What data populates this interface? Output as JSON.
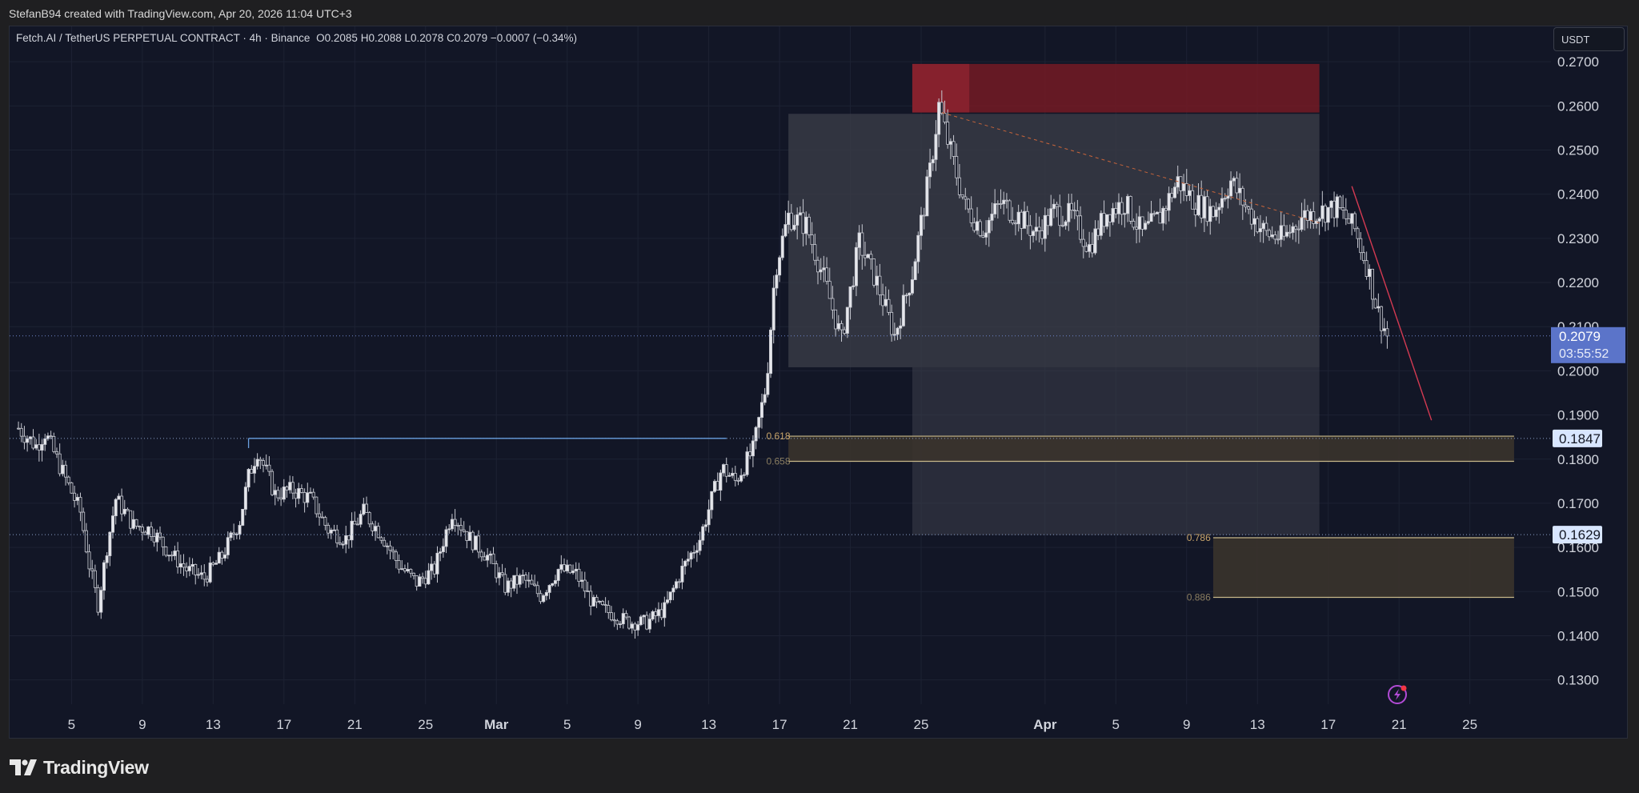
{
  "header": {
    "attribution": "StefanB94 created with TradingView.com, Apr 20, 2026 11:04 UTC+3"
  },
  "legend": {
    "symbol": "Fetch.AI / TetherUS PERPETUAL CONTRACT · 4h · Binance",
    "open": "O0.2085",
    "high": "H0.2088",
    "low": "L0.2078",
    "close": "C0.2079",
    "change": "−0.0007 (−0.34%)"
  },
  "currency_button": "USDT",
  "footer": {
    "brand": "TradingView"
  },
  "colors": {
    "background": "#121626",
    "candle": "#c7c9d1",
    "stop_zone": "#7a1a24",
    "range_box": "#3c3f4a",
    "fib_zone": "#3a332c",
    "fib_line": "#c8b88a",
    "trend_line": "#d43a52",
    "price_label": "#5b74c9",
    "level_label": "#d8e6ff"
  },
  "chart_data": {
    "type": "candlestick",
    "timeframe": "4h",
    "y_ticks": [
      0.13,
      0.14,
      0.15,
      0.16,
      0.17,
      0.18,
      0.19,
      0.2,
      0.21,
      0.22,
      0.23,
      0.24,
      0.25,
      0.26,
      0.27
    ],
    "y_tick_labels": [
      "0.1300",
      "0.1400",
      "0.1500",
      "0.1600",
      "0.1700",
      "0.1800",
      "0.1900",
      "0.2000",
      "0.2100",
      "0.2200",
      "0.2300",
      "0.2400",
      "0.2500",
      "0.2600",
      "0.2700"
    ],
    "ylim": [
      0.1245,
      0.278
    ],
    "x_ticks": [
      {
        "date": "2026-02-05",
        "label": "5"
      },
      {
        "date": "2026-02-09",
        "label": "9"
      },
      {
        "date": "2026-02-13",
        "label": "13"
      },
      {
        "date": "2026-02-17",
        "label": "17"
      },
      {
        "date": "2026-02-21",
        "label": "21"
      },
      {
        "date": "2026-02-25",
        "label": "25"
      },
      {
        "date": "2026-03-01",
        "label": "Mar"
      },
      {
        "date": "2026-03-05",
        "label": "5"
      },
      {
        "date": "2026-03-09",
        "label": "9"
      },
      {
        "date": "2026-03-13",
        "label": "13"
      },
      {
        "date": "2026-03-17",
        "label": "17"
      },
      {
        "date": "2026-03-21",
        "label": "21"
      },
      {
        "date": "2026-03-25",
        "label": "25"
      },
      {
        "date": "2026-04-01",
        "label": "Apr"
      },
      {
        "date": "2026-04-05",
        "label": "5"
      },
      {
        "date": "2026-04-09",
        "label": "9"
      },
      {
        "date": "2026-04-13",
        "label": "13"
      },
      {
        "date": "2026-04-17",
        "label": "17"
      },
      {
        "date": "2026-04-21",
        "label": "21"
      },
      {
        "date": "2026-04-25",
        "label": "25"
      }
    ],
    "xlim": [
      "2026-02-01T12:00",
      "2026-04-29T14:00"
    ],
    "price_path": [
      [
        "2026-02-02T00:00",
        0.187
      ],
      [
        "2026-02-03T00:00",
        0.183
      ],
      [
        "2026-02-03T12:00",
        0.186
      ],
      [
        "2026-02-04T12:00",
        0.177
      ],
      [
        "2026-02-05T12:00",
        0.168
      ],
      [
        "2026-02-06T00:00",
        0.156
      ],
      [
        "2026-02-06T12:00",
        0.147
      ],
      [
        "2026-02-07T00:00",
        0.16
      ],
      [
        "2026-02-07T12:00",
        0.171
      ],
      [
        "2026-02-08T12:00",
        0.165
      ],
      [
        "2026-02-09T12:00",
        0.164
      ],
      [
        "2026-02-10T12:00",
        0.159
      ],
      [
        "2026-02-11T12:00",
        0.155
      ],
      [
        "2026-02-12T12:00",
        0.153
      ],
      [
        "2026-02-13T12:00",
        0.158
      ],
      [
        "2026-02-14T12:00",
        0.166
      ],
      [
        "2026-02-15T00:00",
        0.176
      ],
      [
        "2026-02-15T12:00",
        0.182
      ],
      [
        "2026-02-16T12:00",
        0.172
      ],
      [
        "2026-02-17T12:00",
        0.173
      ],
      [
        "2026-02-18T12:00",
        0.171
      ],
      [
        "2026-02-19T12:00",
        0.164
      ],
      [
        "2026-02-20T12:00",
        0.162
      ],
      [
        "2026-02-21T12:00",
        0.168
      ],
      [
        "2026-02-22T12:00",
        0.163
      ],
      [
        "2026-02-23T12:00",
        0.156
      ],
      [
        "2026-02-24T12:00",
        0.152
      ],
      [
        "2026-02-25T12:00",
        0.155
      ],
      [
        "2026-02-26T12:00",
        0.168
      ],
      [
        "2026-02-27T12:00",
        0.162
      ],
      [
        "2026-02-28T12:00",
        0.158
      ],
      [
        "2026-03-01T12:00",
        0.151
      ],
      [
        "2026-03-02T12:00",
        0.153
      ],
      [
        "2026-03-03T12:00",
        0.149
      ],
      [
        "2026-03-04T12:00",
        0.155
      ],
      [
        "2026-03-05T12:00",
        0.154
      ],
      [
        "2026-03-06T12:00",
        0.147
      ],
      [
        "2026-03-07T12:00",
        0.145
      ],
      [
        "2026-03-08T12:00",
        0.143
      ],
      [
        "2026-03-09T12:00",
        0.143
      ],
      [
        "2026-03-10T12:00",
        0.146
      ],
      [
        "2026-03-11T12:00",
        0.155
      ],
      [
        "2026-03-12T12:00",
        0.162
      ],
      [
        "2026-03-13T06:00",
        0.172
      ],
      [
        "2026-03-13T18:00",
        0.178
      ],
      [
        "2026-03-14T12:00",
        0.175
      ],
      [
        "2026-03-15T12:00",
        0.182
      ],
      [
        "2026-03-16T06:00",
        0.197
      ],
      [
        "2026-03-16T18:00",
        0.223
      ],
      [
        "2026-03-17T12:00",
        0.235
      ],
      [
        "2026-03-18T12:00",
        0.233
      ],
      [
        "2026-03-19T12:00",
        0.221
      ],
      [
        "2026-03-20T12:00",
        0.207
      ],
      [
        "2026-03-21T12:00",
        0.229
      ],
      [
        "2026-03-22T12:00",
        0.22
      ],
      [
        "2026-03-23T12:00",
        0.208
      ],
      [
        "2026-03-24T12:00",
        0.222
      ],
      [
        "2026-03-25T12:00",
        0.245
      ],
      [
        "2026-03-26T00:00",
        0.26
      ],
      [
        "2026-03-26T12:00",
        0.252
      ],
      [
        "2026-03-27T12:00",
        0.237
      ],
      [
        "2026-03-28T12:00",
        0.232
      ],
      [
        "2026-03-29T12:00",
        0.238
      ],
      [
        "2026-03-30T12:00",
        0.235
      ],
      [
        "2026-03-31T12:00",
        0.231
      ],
      [
        "2026-04-01T12:00",
        0.236
      ],
      [
        "2026-04-02T12:00",
        0.235
      ],
      [
        "2026-04-03T12:00",
        0.228
      ],
      [
        "2026-04-04T12:00",
        0.236
      ],
      [
        "2026-04-05T12:00",
        0.238
      ],
      [
        "2026-04-06T12:00",
        0.231
      ],
      [
        "2026-04-07T12:00",
        0.235
      ],
      [
        "2026-04-08T12:00",
        0.243
      ],
      [
        "2026-04-09T12:00",
        0.238
      ],
      [
        "2026-04-10T12:00",
        0.236
      ],
      [
        "2026-04-11T12:00",
        0.243
      ],
      [
        "2026-04-12T12:00",
        0.236
      ],
      [
        "2026-04-13T12:00",
        0.231
      ],
      [
        "2026-04-14T12:00",
        0.23
      ],
      [
        "2026-04-15T12:00",
        0.235
      ],
      [
        "2026-04-16T12:00",
        0.236
      ],
      [
        "2026-04-17T12:00",
        0.237
      ],
      [
        "2026-04-18T12:00",
        0.232
      ],
      [
        "2026-04-19T06:00",
        0.223
      ],
      [
        "2026-04-19T18:00",
        0.214
      ],
      [
        "2026-04-20T08:00",
        0.2079
      ]
    ],
    "current_price": {
      "price": "0.2079",
      "countdown": "03:55:52"
    },
    "horizontal_levels": [
      {
        "price": 0.1847,
        "label": "0.1847"
      },
      {
        "price": 0.1629,
        "label": "0.1629"
      }
    ],
    "fibonacci_levels": [
      {
        "ratio": "0.618",
        "price": 0.1852
      },
      {
        "ratio": "0.658",
        "price": 0.1795
      },
      {
        "ratio": "0.786",
        "price": 0.1622
      },
      {
        "ratio": "0.886",
        "price": 0.1487
      }
    ],
    "boxes": [
      {
        "kind": "stop_zone",
        "from": "2026-03-24T12:00",
        "to": "2026-04-16T12:00",
        "top": 0.2695,
        "bottom": 0.2585
      },
      {
        "kind": "range_upper",
        "from": "2026-03-17T12:00",
        "to": "2026-04-16T12:00",
        "top": 0.2582,
        "bottom": 0.2008
      },
      {
        "kind": "range_lower",
        "from": "2026-03-24T12:00",
        "to": "2026-04-16T12:00",
        "top": 0.2008,
        "bottom": 0.1628
      },
      {
        "kind": "fib_zone",
        "from": "2026-03-17T12:00",
        "to": "2026-04-27T12:00",
        "top": 0.1852,
        "bottom": 0.1795
      },
      {
        "kind": "fib_zone",
        "from": "2026-04-10T12:00",
        "to": "2026-04-27T12:00",
        "top": 0.1622,
        "bottom": 0.1487
      }
    ],
    "trend_lines": [
      {
        "kind": "projection",
        "from": [
          "2026-04-18T08:00",
          0.2418
        ],
        "to": [
          "2026-04-22T20:00",
          0.1888
        ]
      },
      {
        "kind": "dashed_descending",
        "from": [
          "2026-03-26T04:00",
          0.2585
        ],
        "to": [
          "2026-04-16T12:00",
          0.2335
        ]
      }
    ],
    "grid": true
  }
}
